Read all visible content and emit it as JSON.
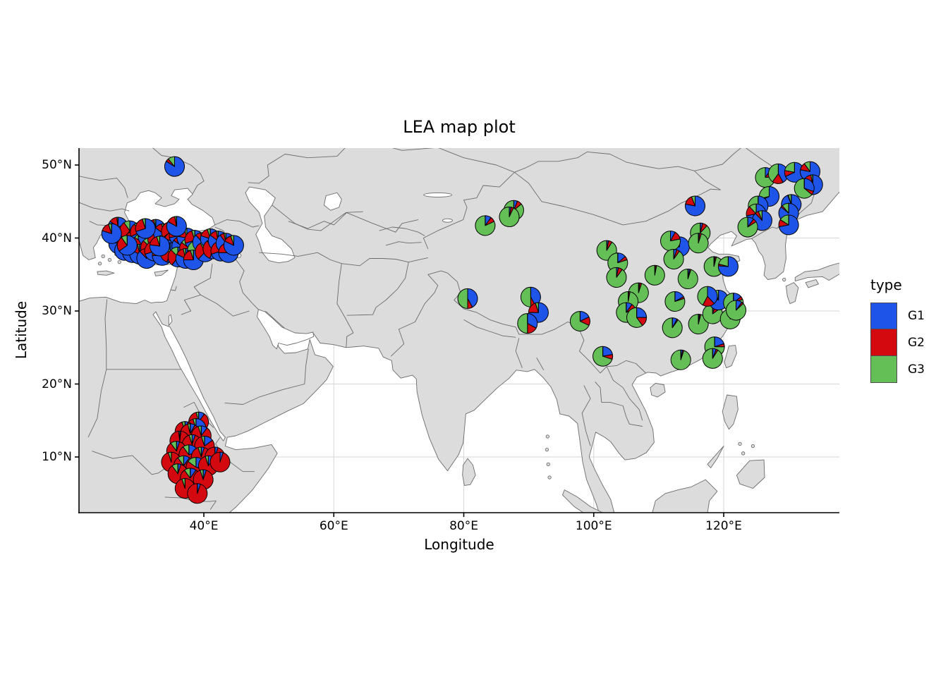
{
  "chart_data": {
    "type": "scatter-pie-map",
    "title": "LEA map plot",
    "xlabel": "Longitude",
    "ylabel": "Latitude",
    "xlim": [
      20.7,
      137.9
    ],
    "ylim": [
      2.4,
      52.3
    ],
    "grid": true,
    "x_ticks": [
      {
        "label": "40°E",
        "value": 40
      },
      {
        "label": "60°E",
        "value": 60
      },
      {
        "label": "80°E",
        "value": 80
      },
      {
        "label": "100°E",
        "value": 100
      },
      {
        "label": "120°E",
        "value": 120
      }
    ],
    "y_ticks": [
      {
        "label": "50°N",
        "value": 50
      },
      {
        "label": "40°N",
        "value": 40
      },
      {
        "label": "30°N",
        "value": 30
      },
      {
        "label": "20°N",
        "value": 20
      },
      {
        "label": "10°N",
        "value": 10
      }
    ],
    "legend": {
      "title": "type",
      "position": "right",
      "items": [
        {
          "label": "G1",
          "color": "#1E55E8"
        },
        {
          "label": "G2",
          "color": "#D40910"
        },
        {
          "label": "G3",
          "color": "#64BF56"
        }
      ]
    },
    "map_style": {
      "land_color": "#DCDCDC",
      "sea_color": "#FFFFFF",
      "boundary_color": "#6B6B6B",
      "gridline_color": "#D6D6D6",
      "pie_outline_color": "#000000",
      "pie_radius_px": 14
    },
    "series_order": [
      "G1",
      "G2",
      "G3"
    ],
    "pies": [
      [
        35.5,
        49.8,
        0.84,
        0.05,
        0.11
      ],
      [
        26.8,
        41.5,
        0.85,
        0.13,
        0.02
      ],
      [
        27.5,
        40.3,
        0.72,
        0.25,
        0.03
      ],
      [
        26.9,
        39.2,
        0.8,
        0.15,
        0.05
      ],
      [
        27.8,
        38.3,
        0.9,
        0.08,
        0.02
      ],
      [
        28.6,
        41.0,
        0.6,
        0.3,
        0.1
      ],
      [
        29.3,
        39.6,
        0.55,
        0.4,
        0.05
      ],
      [
        29.0,
        38.0,
        0.78,
        0.18,
        0.04
      ],
      [
        30.2,
        40.8,
        0.68,
        0.22,
        0.1
      ],
      [
        30.6,
        39.3,
        0.45,
        0.4,
        0.15
      ],
      [
        30.1,
        37.8,
        0.82,
        0.15,
        0.03
      ],
      [
        31.4,
        40.2,
        0.75,
        0.2,
        0.05
      ],
      [
        31.8,
        38.7,
        0.52,
        0.35,
        0.13
      ],
      [
        31.2,
        37.2,
        0.88,
        0.1,
        0.02
      ],
      [
        32.6,
        41.2,
        0.8,
        0.17,
        0.03
      ],
      [
        32.9,
        39.8,
        0.58,
        0.32,
        0.1
      ],
      [
        32.4,
        38.2,
        0.7,
        0.25,
        0.05
      ],
      [
        33.8,
        40.6,
        0.85,
        0.12,
        0.03
      ],
      [
        34.2,
        39.2,
        0.5,
        0.35,
        0.15
      ],
      [
        33.6,
        37.6,
        0.75,
        0.2,
        0.05
      ],
      [
        35.0,
        40.9,
        0.65,
        0.3,
        0.05
      ],
      [
        35.4,
        39.5,
        0.8,
        0.15,
        0.05
      ],
      [
        34.8,
        38.0,
        0.55,
        0.3,
        0.15
      ],
      [
        36.2,
        40.3,
        0.72,
        0.23,
        0.05
      ],
      [
        36.6,
        38.9,
        0.85,
        0.1,
        0.05
      ],
      [
        36.0,
        37.4,
        0.6,
        0.28,
        0.12
      ],
      [
        37.4,
        40.0,
        0.78,
        0.18,
        0.04
      ],
      [
        37.8,
        38.6,
        0.48,
        0.37,
        0.15
      ],
      [
        37.2,
        37.2,
        0.82,
        0.14,
        0.04
      ],
      [
        38.6,
        39.7,
        0.7,
        0.25,
        0.05
      ],
      [
        39.0,
        38.3,
        0.35,
        0.4,
        0.25
      ],
      [
        38.4,
        37.0,
        0.75,
        0.2,
        0.05
      ],
      [
        39.8,
        39.4,
        0.88,
        0.09,
        0.03
      ],
      [
        40.2,
        38.1,
        0.62,
        0.3,
        0.08
      ],
      [
        41.0,
        39.9,
        0.8,
        0.15,
        0.05
      ],
      [
        41.4,
        38.5,
        0.55,
        0.35,
        0.1
      ],
      [
        42.2,
        39.6,
        0.85,
        0.12,
        0.03
      ],
      [
        42.6,
        38.2,
        0.7,
        0.22,
        0.08
      ],
      [
        43.4,
        39.3,
        0.9,
        0.07,
        0.03
      ],
      [
        43.8,
        38.0,
        0.75,
        0.18,
        0.07
      ],
      [
        44.6,
        39.0,
        0.82,
        0.13,
        0.05
      ],
      [
        28.2,
        39.0,
        0.65,
        0.25,
        0.1
      ],
      [
        33.2,
        38.9,
        0.77,
        0.18,
        0.05
      ],
      [
        35.8,
        41.6,
        0.83,
        0.14,
        0.03
      ],
      [
        31.0,
        41.3,
        0.7,
        0.25,
        0.05
      ],
      [
        25.8,
        40.6,
        0.8,
        0.15,
        0.05
      ],
      [
        39.2,
        14.8,
        0.1,
        0.86,
        0.04
      ],
      [
        38.8,
        13.9,
        0.55,
        0.4,
        0.05
      ],
      [
        37.1,
        13.5,
        0.05,
        0.9,
        0.05
      ],
      [
        37.9,
        13.2,
        0.08,
        0.88,
        0.04
      ],
      [
        39.6,
        12.9,
        0.1,
        0.85,
        0.05
      ],
      [
        36.3,
        12.2,
        0.02,
        0.96,
        0.02
      ],
      [
        38.2,
        11.7,
        0.05,
        0.9,
        0.05
      ],
      [
        40.1,
        11.5,
        0.15,
        0.8,
        0.05
      ],
      [
        35.8,
        10.8,
        0.05,
        0.85,
        0.1
      ],
      [
        37.7,
        10.3,
        0.2,
        0.7,
        0.1
      ],
      [
        39.6,
        10.0,
        0.05,
        0.9,
        0.05
      ],
      [
        41.7,
        10.0,
        0.05,
        0.95,
        0.0
      ],
      [
        35.0,
        9.3,
        0.0,
        0.95,
        0.05
      ],
      [
        36.9,
        8.8,
        0.1,
        0.8,
        0.1
      ],
      [
        38.8,
        8.6,
        0.3,
        0.55,
        0.15
      ],
      [
        40.7,
        8.8,
        0.1,
        0.85,
        0.05
      ],
      [
        42.5,
        9.3,
        0.05,
        0.95,
        0.0
      ],
      [
        36.0,
        7.7,
        0.05,
        0.85,
        0.1
      ],
      [
        37.9,
        7.1,
        0.1,
        0.8,
        0.1
      ],
      [
        39.9,
        6.9,
        0.05,
        0.9,
        0.05
      ],
      [
        37.1,
        5.7,
        0.0,
        0.95,
        0.05
      ],
      [
        39.0,
        5.0,
        0.05,
        0.95,
        0.0
      ],
      [
        83.3,
        41.7,
        0.1,
        0.08,
        0.82
      ],
      [
        87.7,
        43.8,
        0.06,
        0.08,
        0.86
      ],
      [
        87.0,
        42.9,
        0.03,
        0.04,
        0.93
      ],
      [
        102.0,
        38.3,
        0.03,
        0.06,
        0.91
      ],
      [
        103.7,
        36.6,
        0.14,
        0.06,
        0.8
      ],
      [
        103.5,
        34.6,
        0.03,
        0.07,
        0.9
      ],
      [
        80.6,
        31.7,
        0.42,
        0.08,
        0.5
      ],
      [
        90.3,
        31.9,
        0.42,
        0.08,
        0.5
      ],
      [
        91.5,
        29.8,
        0.75,
        0.2,
        0.05
      ],
      [
        89.8,
        28.3,
        0.33,
        0.17,
        0.5
      ],
      [
        97.9,
        28.6,
        0.18,
        0.14,
        0.68
      ],
      [
        101.4,
        23.8,
        0.22,
        0.08,
        0.7
      ],
      [
        109.4,
        34.9,
        0.01,
        0.02,
        0.97
      ],
      [
        113.2,
        38.8,
        0.72,
        0.2,
        0.08
      ],
      [
        111.8,
        39.6,
        0.08,
        0.14,
        0.78
      ],
      [
        112.3,
        37.1,
        0.05,
        0.05,
        0.9
      ],
      [
        116.4,
        40.7,
        0.04,
        0.08,
        0.88
      ],
      [
        116.1,
        39.3,
        0.02,
        0.03,
        0.95
      ],
      [
        114.5,
        34.4,
        0.03,
        0.02,
        0.95
      ],
      [
        118.5,
        36.1,
        0.02,
        0.02,
        0.96
      ],
      [
        120.7,
        36.1,
        0.76,
        0.03,
        0.21
      ],
      [
        106.9,
        32.5,
        0.02,
        0.03,
        0.95
      ],
      [
        105.3,
        31.3,
        0.01,
        0.02,
        0.97
      ],
      [
        105.0,
        29.8,
        0.1,
        0.08,
        0.82
      ],
      [
        106.6,
        29.1,
        0.25,
        0.15,
        0.6
      ],
      [
        112.5,
        31.3,
        0.17,
        0.03,
        0.8
      ],
      [
        112.1,
        27.7,
        0.08,
        0.02,
        0.9
      ],
      [
        116.1,
        28.2,
        0.02,
        0.02,
        0.96
      ],
      [
        118.3,
        29.6,
        0.05,
        0.1,
        0.85
      ],
      [
        121.0,
        28.9,
        0.1,
        0.05,
        0.85
      ],
      [
        119.2,
        31.5,
        0.82,
        0.12,
        0.06
      ],
      [
        117.5,
        32.0,
        0.38,
        0.2,
        0.42
      ],
      [
        121.5,
        31.1,
        0.14,
        0.05,
        0.81
      ],
      [
        121.9,
        30.1,
        0.1,
        0.03,
        0.87
      ],
      [
        118.6,
        25.1,
        0.2,
        0.05,
        0.75
      ],
      [
        118.3,
        23.5,
        0.06,
        0.03,
        0.91
      ],
      [
        113.4,
        23.3,
        0.03,
        0.02,
        0.95
      ],
      [
        115.6,
        44.4,
        0.78,
        0.16,
        0.06
      ],
      [
        126.4,
        48.3,
        0.1,
        0.14,
        0.76
      ],
      [
        128.4,
        48.8,
        0.42,
        0.18,
        0.4
      ],
      [
        130.9,
        49.0,
        0.68,
        0.1,
        0.22
      ],
      [
        133.3,
        49.1,
        0.78,
        0.12,
        0.1
      ],
      [
        133.7,
        47.3,
        0.85,
        0.12,
        0.03
      ],
      [
        132.4,
        46.8,
        0.3,
        0.06,
        0.64
      ],
      [
        127.0,
        45.7,
        0.68,
        0.03,
        0.29
      ],
      [
        130.4,
        44.6,
        0.94,
        0.01,
        0.05
      ],
      [
        125.3,
        44.4,
        0.35,
        0.15,
        0.5
      ],
      [
        125.0,
        43.3,
        0.72,
        0.16,
        0.12
      ],
      [
        125.9,
        42.4,
        0.88,
        0.06,
        0.06
      ],
      [
        130.0,
        43.4,
        0.86,
        0.03,
        0.11
      ],
      [
        123.7,
        41.5,
        0.1,
        0.06,
        0.84
      ],
      [
        130.0,
        41.8,
        0.72,
        0.12,
        0.16
      ]
    ]
  }
}
